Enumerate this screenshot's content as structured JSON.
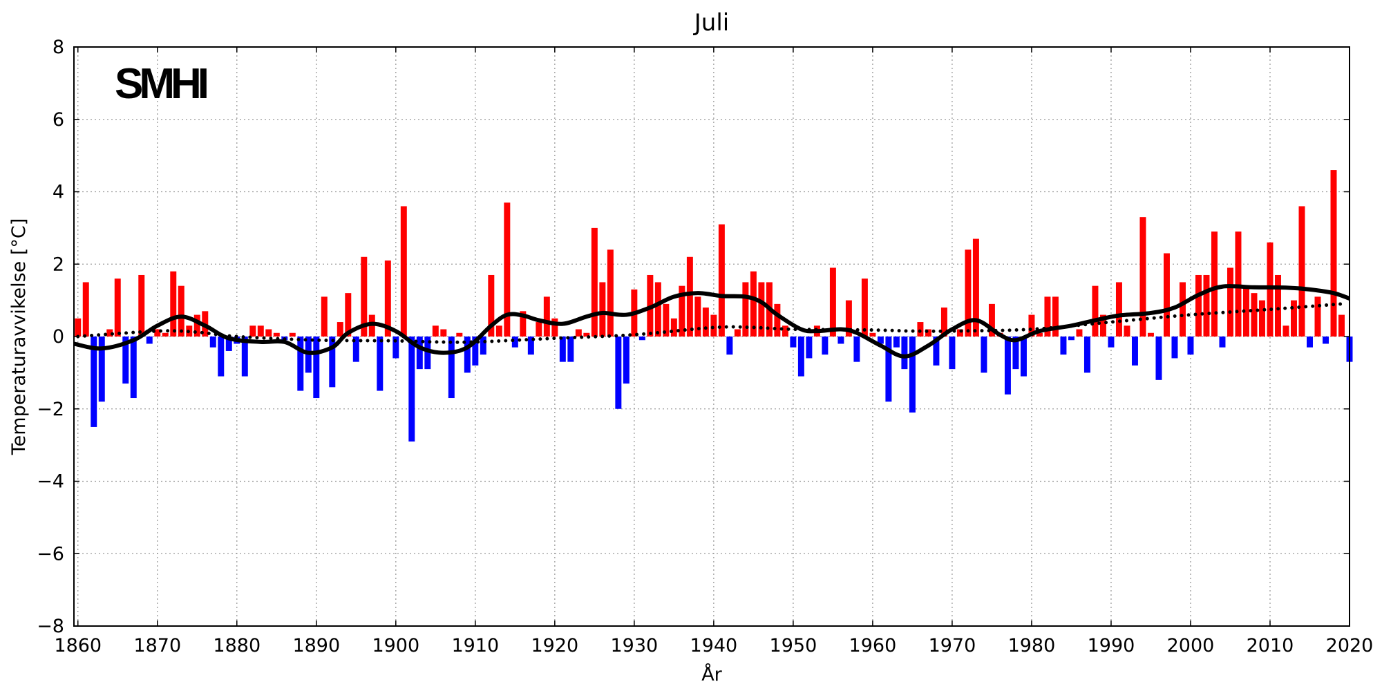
{
  "chart_data": {
    "type": "bar",
    "title": "Juli",
    "xlabel": "År",
    "ylabel": "Temperaturavvikelse [°C]",
    "logo": "SMHI",
    "xlim": [
      1859.5,
      2020
    ],
    "ylim": [
      -8,
      8
    ],
    "x_ticks": [
      1860,
      1870,
      1880,
      1890,
      1900,
      1910,
      1920,
      1930,
      1940,
      1950,
      1960,
      1970,
      1980,
      1990,
      2000,
      2010,
      2020
    ],
    "x_tick_labels": [
      "1860",
      "1870",
      "1880",
      "1890",
      "1900",
      "1910",
      "1920",
      "1930",
      "1940",
      "1950",
      "1960",
      "1970",
      "1980",
      "1990",
      "2000",
      "2010",
      "2020"
    ],
    "y_ticks": [
      8,
      6,
      4,
      2,
      0,
      -2,
      -4,
      -6,
      -8
    ],
    "y_tick_labels": [
      "8",
      "6",
      "4",
      "2",
      "0",
      "−2",
      "−4",
      "−6",
      "−8"
    ],
    "grid": true,
    "colors": {
      "positive": "#ff0000",
      "negative": "#0000ff",
      "smooth": "#000000",
      "trend": "#000000"
    },
    "series": [
      {
        "kind": "bar",
        "start_year": 1860,
        "values": [
          0.5,
          1.5,
          -2.5,
          -1.8,
          0.2,
          1.6,
          -1.3,
          -1.7,
          1.7,
          -0.2,
          0.2,
          0.1,
          1.8,
          1.4,
          0.3,
          0.6,
          0.7,
          -0.3,
          -1.1,
          -0.4,
          -0.2,
          -1.1,
          0.3,
          0.3,
          0.2,
          0.1,
          -0.1,
          0.1,
          -1.5,
          -1.0,
          -1.7,
          1.1,
          -1.4,
          0.4,
          1.2,
          -0.7,
          2.2,
          0.6,
          -1.5,
          2.1,
          -0.6,
          3.6,
          -2.9,
          -0.9,
          -0.9,
          0.3,
          0.2,
          -1.7,
          0.1,
          -1.0,
          -0.8,
          -0.5,
          1.7,
          0.3,
          3.7,
          -0.3,
          0.7,
          -0.5,
          0.4,
          1.1,
          0.5,
          -0.7,
          -0.7,
          0.2,
          0.1,
          3.0,
          1.5,
          2.4,
          -2.0,
          -1.3,
          1.3,
          -0.1,
          1.7,
          1.5,
          0.9,
          0.5,
          1.4,
          2.2,
          1.1,
          0.8,
          0.6,
          3.1,
          -0.5,
          0.2,
          1.5,
          1.8,
          1.5,
          1.5,
          0.9,
          0.3,
          -0.3,
          -1.1,
          -0.6,
          0.3,
          -0.5,
          1.9,
          -0.2,
          1.0,
          -0.7,
          1.6,
          0.1,
          -0.2,
          -1.8,
          -0.3,
          -0.9,
          -2.1,
          0.4,
          0.2,
          -0.8,
          0.8,
          -0.9,
          0.2,
          2.4,
          2.7,
          -1.0,
          0.9,
          0.1,
          -1.6,
          -0.9,
          -1.1,
          0.6,
          0.1,
          1.1,
          1.1,
          -0.5,
          -0.1,
          0.2,
          -1.0,
          1.4,
          0.6,
          -0.3,
          1.5,
          0.3,
          -0.8,
          3.3,
          0.1,
          -1.2,
          2.3,
          -0.6,
          1.5,
          -0.5,
          1.7,
          1.7,
          2.9,
          -0.3,
          1.9,
          2.9,
          1.4,
          1.2,
          1.0,
          2.6,
          1.7,
          0.3,
          1.0,
          3.6,
          -0.3,
          1.1,
          -0.2,
          4.6,
          0.6,
          -0.7
        ]
      },
      {
        "kind": "smoothed",
        "style": "solid",
        "x": [
          1859.5,
          1863,
          1867,
          1870,
          1873,
          1876,
          1879,
          1883,
          1886,
          1889,
          1892,
          1894,
          1897,
          1900,
          1903,
          1906,
          1909,
          1912,
          1914,
          1916,
          1918,
          1921,
          1924,
          1926,
          1929,
          1932,
          1935,
          1938,
          1941,
          1944,
          1946,
          1948,
          1951,
          1953,
          1956,
          1958,
          1961,
          1964,
          1967,
          1970,
          1973,
          1976,
          1978,
          1981,
          1985,
          1988,
          1991,
          1995,
          1998,
          2001,
          2004,
          2008,
          2012,
          2015,
          2018,
          2020
        ],
        "y": [
          -0.2,
          -0.33,
          -0.1,
          0.3,
          0.55,
          0.3,
          -0.05,
          -0.15,
          -0.15,
          -0.45,
          -0.3,
          0.1,
          0.35,
          0.15,
          -0.3,
          -0.45,
          -0.3,
          0.3,
          0.6,
          0.58,
          0.45,
          0.35,
          0.55,
          0.65,
          0.6,
          0.8,
          1.1,
          1.2,
          1.12,
          1.1,
          0.95,
          0.6,
          0.2,
          0.15,
          0.2,
          0.1,
          -0.25,
          -0.55,
          -0.25,
          0.2,
          0.45,
          0.05,
          -0.1,
          0.15,
          0.3,
          0.45,
          0.58,
          0.65,
          0.8,
          1.15,
          1.38,
          1.36,
          1.35,
          1.3,
          1.2,
          1.05
        ]
      },
      {
        "kind": "trend",
        "style": "dotted",
        "x": [
          1860,
          1870,
          1875,
          1880,
          1890,
          1900,
          1905,
          1910,
          1920,
          1930,
          1940,
          1945,
          1950,
          1960,
          1965,
          1970,
          1980,
          1990,
          2000,
          2010,
          2019
        ],
        "y": [
          0.0,
          0.15,
          0.12,
          0.0,
          -0.1,
          -0.12,
          -0.15,
          -0.15,
          -0.05,
          0.05,
          0.25,
          0.25,
          0.2,
          0.18,
          0.15,
          0.15,
          0.2,
          0.4,
          0.6,
          0.75,
          0.9
        ]
      }
    ]
  }
}
